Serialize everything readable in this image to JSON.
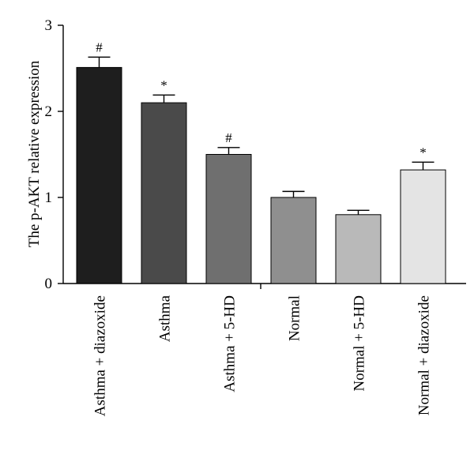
{
  "chart_data": {
    "type": "bar",
    "ylabel": "The p-AKT relative expression",
    "xlabel": "",
    "ylim": [
      0,
      3
    ],
    "yticks": [
      "0",
      "1",
      "2",
      "3"
    ],
    "grid": false,
    "categories": [
      "Asthma + diazoxide",
      "Asthma",
      "Asthma + 5-HD",
      "Normal",
      "Normal + 5-HD",
      "Normal + diazoxide"
    ],
    "values": [
      2.51,
      2.1,
      1.5,
      1.0,
      0.8,
      1.32
    ],
    "errors": [
      0.12,
      0.09,
      0.08,
      0.07,
      0.05,
      0.09
    ],
    "annotations": [
      "#",
      "*",
      "#",
      "",
      "",
      "*"
    ],
    "colors": [
      "#1e1e1e",
      "#4a4a4a",
      "#6f6f6f",
      "#8f8f8f",
      "#b9b9b9",
      "#e4e4e4"
    ]
  }
}
